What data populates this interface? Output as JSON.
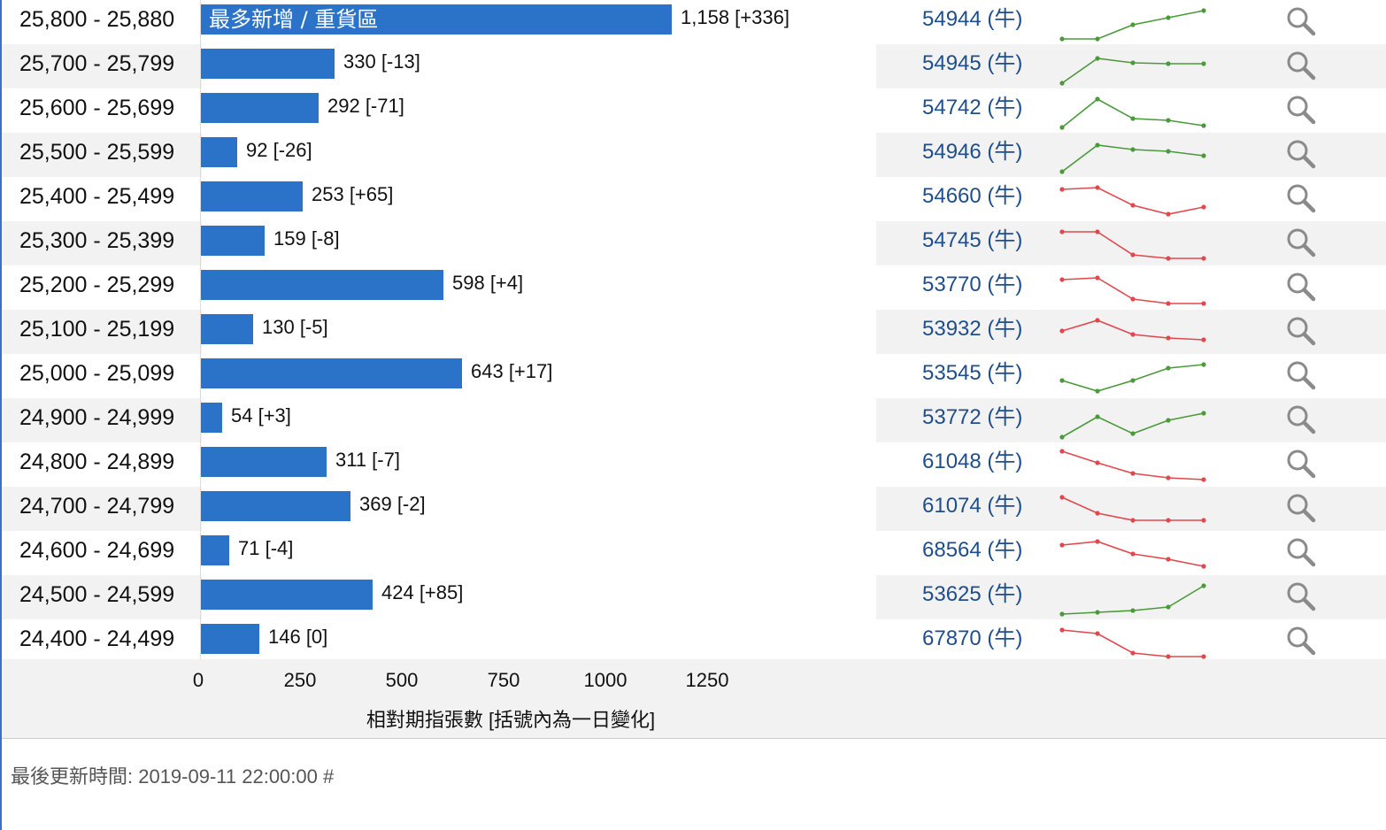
{
  "chart_data": {
    "type": "bar",
    "orientation": "horizontal",
    "xlabel": "相對期指張數 [括號內為一日變化]",
    "xlim": [
      0,
      1250
    ],
    "xticks": [
      "0",
      "250",
      "500",
      "750",
      "1000",
      "1250"
    ],
    "highlight_label": "最多新增 / 重貨區",
    "rows": [
      {
        "range": "25,800 - 25,880",
        "value": 1158,
        "label": "1,158 [+336]",
        "code": "54944 (牛)",
        "trend": "up",
        "spark": [
          1.0,
          1.0,
          2.6,
          3.4,
          4.2
        ]
      },
      {
        "range": "25,700 - 25,799",
        "value": 330,
        "label": "330 [-13]",
        "code": "54945 (牛)",
        "trend": "up",
        "spark": [
          1.0,
          3.8,
          3.3,
          3.2,
          3.2
        ]
      },
      {
        "range": "25,600 - 25,699",
        "value": 292,
        "label": "292 [-71]",
        "code": "54742 (牛)",
        "trend": "up",
        "spark": [
          1.0,
          4.2,
          2.0,
          1.8,
          1.2
        ]
      },
      {
        "range": "25,500 - 25,599",
        "value": 92,
        "label": "92 [-26]",
        "code": "54946 (牛)",
        "trend": "up",
        "spark": [
          1.0,
          4.0,
          3.5,
          3.3,
          2.8
        ]
      },
      {
        "range": "25,400 - 25,499",
        "value": 253,
        "label": "253 [+65]",
        "code": "54660 (牛)",
        "trend": "down",
        "spark": [
          4.0,
          4.2,
          2.2,
          1.2,
          2.0
        ]
      },
      {
        "range": "25,300 - 25,399",
        "value": 159,
        "label": "159 [-8]",
        "code": "54745 (牛)",
        "trend": "down",
        "spark": [
          4.2,
          4.2,
          1.6,
          1.2,
          1.2
        ]
      },
      {
        "range": "25,200 - 25,299",
        "value": 598,
        "label": "598 [+4]",
        "code": "53770 (牛)",
        "trend": "down",
        "spark": [
          3.8,
          4.0,
          1.6,
          1.1,
          1.1
        ]
      },
      {
        "range": "25,100 - 25,199",
        "value": 130,
        "label": "130 [-5]",
        "code": "53932 (牛)",
        "trend": "down",
        "spark": [
          3.0,
          4.2,
          2.6,
          2.2,
          2.0
        ]
      },
      {
        "range": "25,000 - 25,099",
        "value": 643,
        "label": "643 [+17]",
        "code": "53545 (牛)",
        "trend": "up",
        "spark": [
          2.4,
          1.2,
          2.4,
          3.8,
          4.2
        ]
      },
      {
        "range": "24,900 - 24,999",
        "value": 54,
        "label": "54 [+3]",
        "code": "53772 (牛)",
        "trend": "up",
        "spark": [
          1.0,
          3.3,
          1.4,
          2.9,
          3.7
        ]
      },
      {
        "range": "24,800 - 24,899",
        "value": 311,
        "label": "311 [-7]",
        "code": "61048 (牛)",
        "trend": "down",
        "spark": [
          4.4,
          3.1,
          1.9,
          1.4,
          1.2
        ]
      },
      {
        "range": "24,700 - 24,799",
        "value": 369,
        "label": "369 [-2]",
        "code": "61074 (牛)",
        "trend": "down",
        "spark": [
          4.2,
          2.4,
          1.6,
          1.6,
          1.6
        ]
      },
      {
        "range": "24,600 - 24,699",
        "value": 71,
        "label": "71 [-4]",
        "code": "68564 (牛)",
        "trend": "down",
        "spark": [
          3.8,
          4.2,
          2.8,
          2.2,
          1.4
        ]
      },
      {
        "range": "24,500 - 24,599",
        "value": 424,
        "label": "424 [+85]",
        "code": "53625 (牛)",
        "trend": "up",
        "spark": [
          1.0,
          1.2,
          1.4,
          1.8,
          4.2
        ]
      },
      {
        "range": "24,400 - 24,499",
        "value": 146,
        "label": "146 [0]",
        "code": "67870 (牛)",
        "trend": "down",
        "spark": [
          4.2,
          3.8,
          1.6,
          1.2,
          1.2
        ]
      }
    ]
  },
  "colors": {
    "bar": "#2b73c9",
    "up": "#4a9a3a",
    "down": "#e0484e",
    "link": "#1f4e8c"
  },
  "footer": {
    "update_text": "最後更新時間: 2019-09-11 22:00:00 #"
  }
}
